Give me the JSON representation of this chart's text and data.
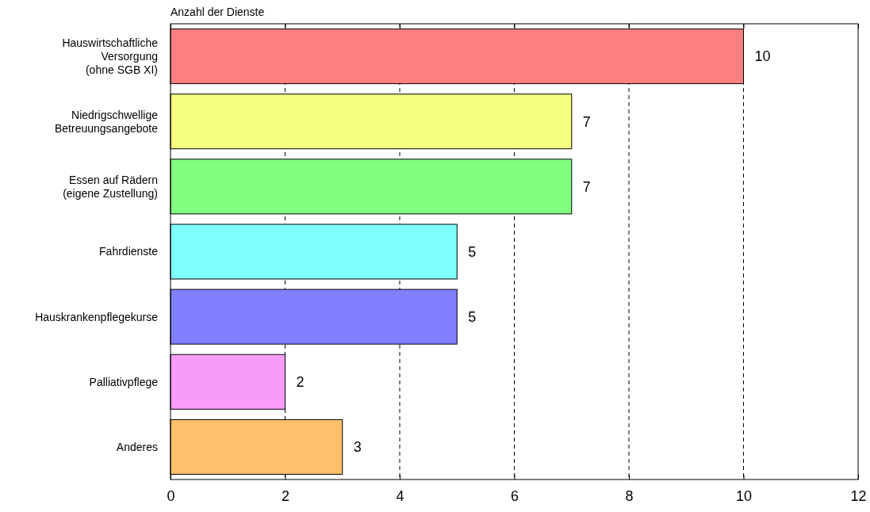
{
  "chart_data": {
    "type": "bar",
    "orientation": "horizontal",
    "title": "Anzahl der Dienste",
    "categories": [
      "Hauswirtschaftliche\nVersorgung\n(ohne SGB XI)",
      "Niedrigschwellige\nBetreuungsangebote",
      "Essen auf Rädern\n(eigene Zustellung)",
      "Fahrdienste",
      "Hauskrankenpflegekurse",
      "Palliativpflege",
      "Anderes"
    ],
    "values": [
      10,
      7,
      7,
      5,
      5,
      2,
      3
    ],
    "colors": [
      "#ff8080",
      "#f5ff80",
      "#80ff80",
      "#80ffff",
      "#8080ff",
      "#f99cf9",
      "#ffc06c"
    ],
    "xlim": [
      0,
      12
    ],
    "xticks": [
      0,
      2,
      4,
      6,
      8,
      10,
      12
    ],
    "grid": "x",
    "data_labels": true
  }
}
